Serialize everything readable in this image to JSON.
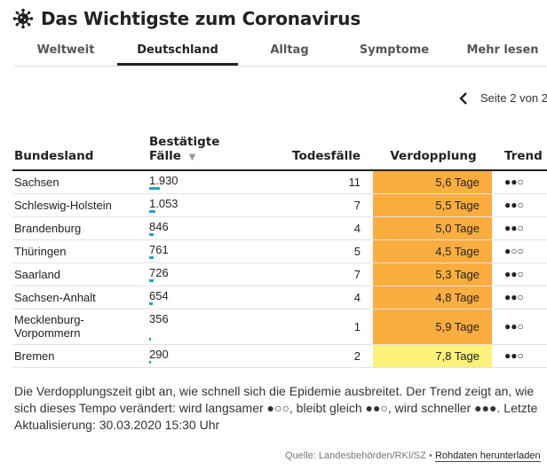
{
  "header": {
    "title": "Das Wichtigste zum Coronavirus",
    "icon": "virus-icon"
  },
  "tabs": [
    {
      "label": "Weltweit",
      "active": false
    },
    {
      "label": "Deutschland",
      "active": true
    },
    {
      "label": "Alltag",
      "active": false
    },
    {
      "label": "Symptome",
      "active": false
    },
    {
      "label": "Mehr lesen",
      "active": false
    }
  ],
  "pager": {
    "label": "Seite 2 von 2",
    "icon": "chevron-left-icon"
  },
  "table": {
    "headers": {
      "state": "Bundesland",
      "cases_line1": "Bestätigte",
      "cases_line2": "Fälle",
      "sort_icon": "▼",
      "deaths": "Todesfälle",
      "doubling": "Verdopplung",
      "trend": "Trend"
    },
    "bar_max_cases": 1930,
    "rows": [
      {
        "state": "Sachsen",
        "cases": "1.930",
        "cases_num": 1930,
        "deaths": "11",
        "doubling": "5,6 Tage",
        "color": "#fbad3f",
        "trend": "●●○"
      },
      {
        "state": "Schleswig-Holstein",
        "cases": "1.053",
        "cases_num": 1053,
        "deaths": "7",
        "doubling": "5,5 Tage",
        "color": "#fbad3f",
        "trend": "●●○"
      },
      {
        "state": "Brandenburg",
        "cases": "846",
        "cases_num": 846,
        "deaths": "4",
        "doubling": "5,0 Tage",
        "color": "#fbad3f",
        "trend": "●●○"
      },
      {
        "state": "Thüringen",
        "cases": "761",
        "cases_num": 761,
        "deaths": "5",
        "doubling": "4,5 Tage",
        "color": "#fbad3f",
        "trend": "●○○"
      },
      {
        "state": "Saarland",
        "cases": "726",
        "cases_num": 726,
        "deaths": "7",
        "doubling": "5,3 Tage",
        "color": "#fbad3f",
        "trend": "●●○"
      },
      {
        "state": "Sachsen-Anhalt",
        "cases": "654",
        "cases_num": 654,
        "deaths": "4",
        "doubling": "4,8 Tage",
        "color": "#fbad3f",
        "trend": "●●○"
      },
      {
        "state": "Mecklenburg-Vorpommern",
        "state_line1": "Mecklenburg-",
        "state_line2": "Vorpommern",
        "cases": "356",
        "cases_num": 356,
        "deaths": "1",
        "doubling": "5,9 Tage",
        "color": "#fbad3f",
        "trend": "●●○"
      },
      {
        "state": "Bremen",
        "cases": "290",
        "cases_num": 290,
        "deaths": "2",
        "doubling": "7,8 Tage",
        "color": "#fcf27a",
        "trend": "●●○"
      }
    ]
  },
  "note": "Die Verdopplungszeit gibt an, wie schnell sich die Epidemie ausbreitet. Der Trend zeigt an, wie sich dieses Tempo verändert: wird langsamer ●○○, bleibt gleich ●●○, wird schneller ●●●. Letzte Aktualisierung: 30.03.2020 15:30 Uhr",
  "source": {
    "text": "Quelle: Landesbehörden/RKI/SZ •",
    "download": "Rohdaten herunterladen"
  }
}
